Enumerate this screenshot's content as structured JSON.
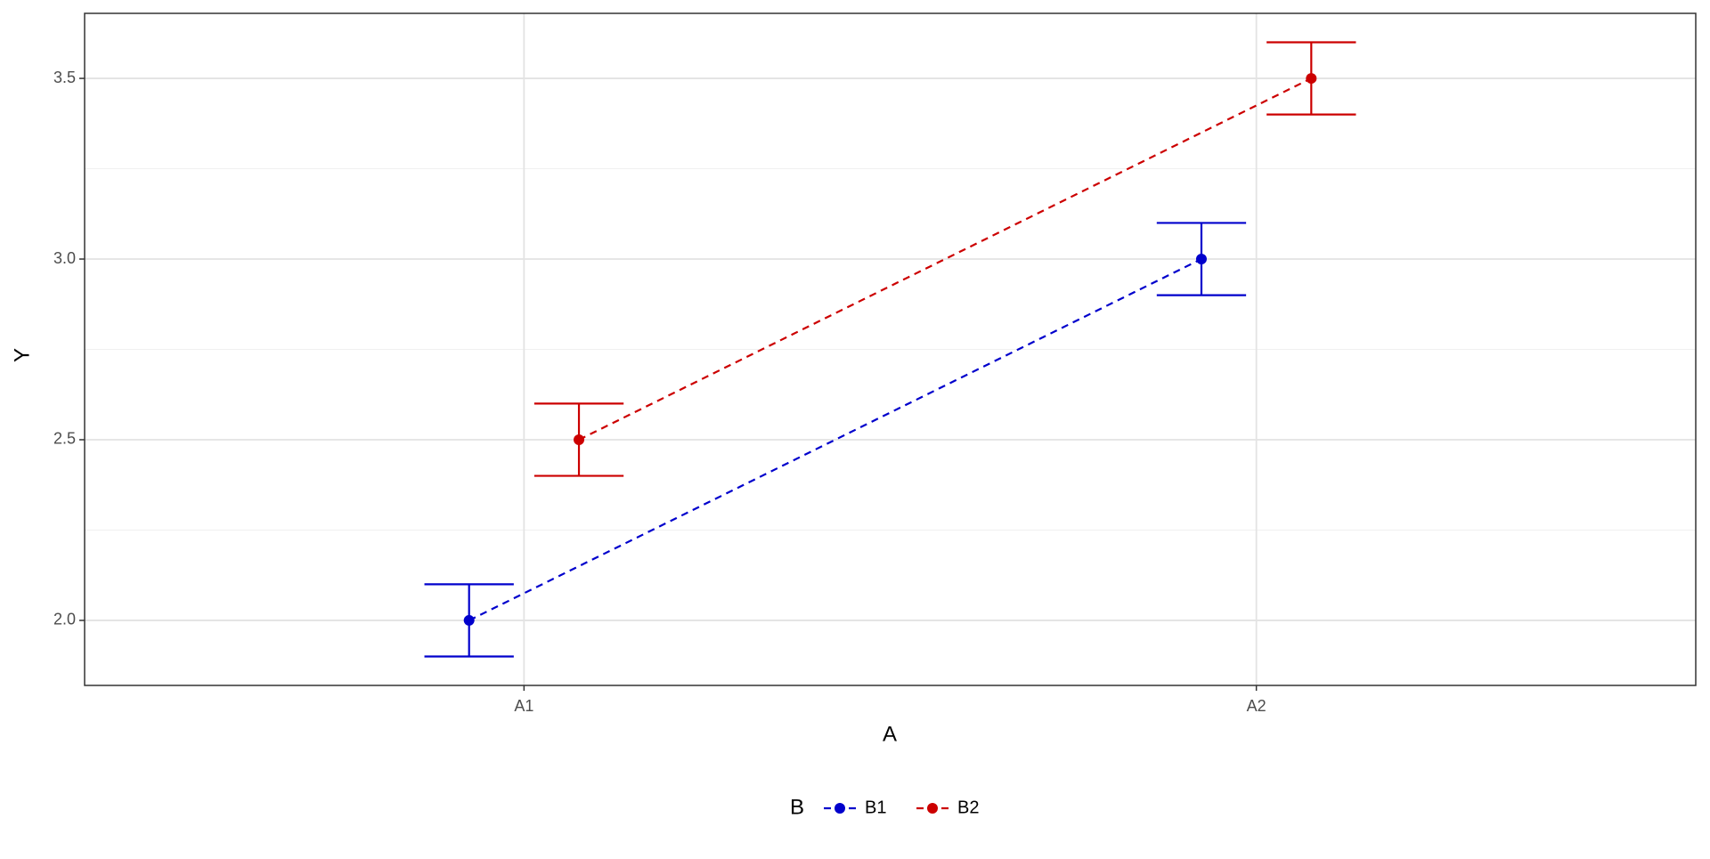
{
  "chart_data": {
    "type": "line",
    "x_label": "A",
    "y_label": "Y",
    "categories": [
      "A1",
      "A2"
    ],
    "series": [
      {
        "name": "B1",
        "color": "#0000CC",
        "values": [
          2.0,
          3.0
        ],
        "errors": [
          0.1,
          0.1
        ]
      },
      {
        "name": "B2",
        "color": "#CC0000",
        "values": [
          2.5,
          3.5
        ],
        "errors": [
          0.1,
          0.1
        ]
      }
    ],
    "ylim": [
      1.82,
      3.68
    ],
    "yticks": [
      {
        "value": 2,
        "label": "2.0"
      },
      2.5,
      {
        "value": 3,
        "label": "3.0"
      },
      3.5
    ],
    "grid": true,
    "legend_title": "B",
    "legend_position": "bottom"
  }
}
